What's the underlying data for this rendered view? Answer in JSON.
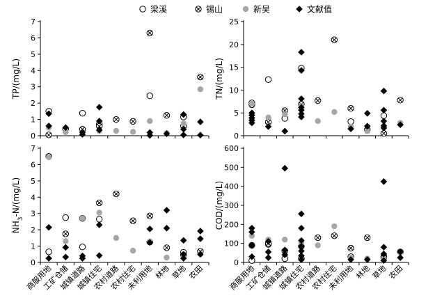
{
  "chart_data": {
    "type": "scatter",
    "categories": [
      "商服用地",
      "工矿仓储",
      "城镇道路",
      "城镇住宅",
      "农村道路",
      "农村住宅",
      "未利用地",
      "林地",
      "草地",
      "农田"
    ],
    "legend": {
      "placement": "top",
      "entries": [
        {
          "key": "liangxi",
          "label": "梁溪",
          "marker": "open-circle"
        },
        {
          "key": "xishan",
          "label": "锡山",
          "marker": "circle-x"
        },
        {
          "key": "xinwu",
          "label": "新吴",
          "marker": "gray-circle"
        },
        {
          "key": "literature",
          "label": "文献值",
          "marker": "diamond"
        }
      ]
    },
    "panels": [
      {
        "id": "tp",
        "ylabel": "TP/(mg/L)",
        "ylim": [
          0,
          7
        ],
        "yticks": [
          0,
          1,
          2,
          3,
          4,
          5,
          6,
          7
        ],
        "series": {
          "liangxi": [
            [
              1.5
            ],
            [],
            [
              1.38
            ],
            [
              0.7
            ],
            [],
            [],
            [
              2.45
            ],
            [],
            [
              1.15
            ],
            []
          ],
          "xishan": [
            [
              0.05
            ],
            [
              0.42
            ],
            [
              0.4
            ],
            [
              0.58
            ],
            [
              1.0
            ],
            [
              0.88
            ],
            [
              6.3
            ],
            [
              1.25
            ],
            [
              0.6
            ],
            [
              3.6
            ]
          ],
          "xinwu": [
            [
              0.5
            ],
            [
              0.22
            ],
            [
              0.18
            ],
            [
              0.3
            ],
            [
              0.3
            ],
            [
              0.24
            ],
            [
              0.9
            ],
            [
              0.17
            ],
            [
              0.75
            ],
            [
              2.85
            ]
          ],
          "literature": [
            [
              1.35,
              0.6
            ],
            [
              0.5
            ],
            [
              0.22,
              0.08
            ],
            [
              1.75,
              0.9,
              0.35
            ],
            [],
            [],
            [
              0.2,
              0.02
            ],
            [
              0.12
            ],
            [
              1.3,
              0.4,
              0.05
            ],
            [
              0.85,
              0.04
            ]
          ]
        }
      },
      {
        "id": "tn",
        "ylabel": "TN/(mg/L)",
        "ylim": [
          0,
          25
        ],
        "yticks": [
          0,
          5,
          10,
          15,
          20,
          25
        ],
        "series": {
          "liangxi": [
            [
              7.2
            ],
            [
              12.3
            ],
            [
              3.8
            ],
            [
              14.8
            ],
            [],
            [],
            [
              3.1
            ],
            [],
            [
              4.4
            ],
            []
          ],
          "xishan": [
            [
              6.8
            ],
            [
              3.0
            ],
            [
              5.5
            ],
            [
              6.9
            ],
            [
              7.7
            ],
            [
              21.0
            ],
            [
              6.0
            ],
            [
              1.3
            ],
            [
              0.5
            ],
            [
              7.8
            ]
          ],
          "xinwu": [
            [
              7.0
            ],
            [
              4.0
            ],
            [
              4.7
            ],
            [
              6.5
            ],
            [
              3.2
            ],
            [
              5.2
            ],
            [
              2.0
            ],
            [
              1.0
            ],
            [
              2.0
            ],
            [
              2.8
            ]
          ],
          "literature": [
            [
              5.0,
              4.5,
              3.9,
              3.4,
              2.8
            ],
            [
              2.0
            ],
            [
              1.0
            ],
            [
              18.3,
              14.3,
              8.1,
              6.2,
              5.6,
              4.8,
              4.1
            ],
            [],
            [],
            [
              1.5
            ],
            [
              4.9,
              2.1
            ],
            [
              9.8,
              5.6,
              3.2,
              2.2,
              1.7
            ],
            [
              2.4
            ]
          ]
        }
      },
      {
        "id": "nh3n",
        "ylabel": "NH3-N/(mg/L)",
        "ylabel_parts": {
          "base": "NH",
          "sub": "3",
          "rest": "-N/(mg/L)"
        },
        "ylim": [
          0,
          7
        ],
        "yticks": [
          0,
          1,
          2,
          3,
          4,
          5,
          6,
          7
        ],
        "series": {
          "liangxi": [
            [
              0.65
            ],
            [
              2.75
            ],
            [
              0.95
            ],
            [
              2.65
            ],
            [],
            [],
            [
              1.25
            ],
            [],
            [
              0.62
            ],
            []
          ],
          "xishan": [
            [
              6.5
            ],
            [
              1.75
            ],
            [
              2.7
            ],
            [
              3.65
            ],
            [
              4.2
            ],
            [
              2.55
            ],
            [
              2.85
            ],
            [
              0.9
            ],
            [
              0.45
            ],
            [
              0.68
            ]
          ],
          "xinwu": [
            [
              6.45
            ],
            [
              1.3
            ],
            [
              2.7
            ],
            [
              3.05
            ],
            [
              1.5
            ],
            [
              0.72
            ],
            [
              1.28
            ],
            [
              0.3
            ],
            [
              0.3
            ],
            [
              0.5
            ]
          ],
          "literature": [
            [
              2.15,
              0.25
            ],
            [
              0.92,
              0.33
            ],
            [
              0.4,
              0.25
            ],
            [
              2.3,
              0.42
            ],
            [],
            [],
            [
              2.05,
              1.22
            ],
            [
              3.2,
              2.1
            ],
            [
              1.35,
              0.5,
              0.25
            ],
            [
              1.92,
              1.45,
              0.5
            ]
          ]
        }
      },
      {
        "id": "cod",
        "ylabel": "COD/(mg/L)",
        "ylim": [
          0,
          600
        ],
        "yticks": [
          0,
          100,
          200,
          300,
          400,
          500,
          600
        ],
        "series": {
          "liangxi": [
            [
              10
            ],
            [
              95
            ],
            [
              20
            ],
            [
              20
            ],
            [],
            [],
            [
              30
            ],
            [],
            [
              30
            ],
            []
          ],
          "xishan": [
            [
              90
            ],
            [
              100
            ],
            [
              60
            ],
            [
              85
            ],
            [
              130
            ],
            [
              140
            ],
            [
              75
            ],
            [
              130
            ],
            [
              25
            ],
            [
              55
            ]
          ],
          "xinwu": [
            [
              140
            ],
            [
              120
            ],
            [
              120
            ],
            [
              100
            ],
            [
              90
            ],
            [
              190
            ],
            [
              25
            ],
            [
              20
            ],
            [
              20
            ],
            [
              50
            ]
          ],
          "literature": [
            [
              180,
              160,
              90,
              30
            ],
            [
              110,
              55,
              25
            ],
            [
              495,
              65,
              40
            ],
            [
              255,
              180,
              115,
              85,
              60,
              35,
              15
            ],
            [],
            [],
            [
              15
            ],
            [
              15
            ],
            [
              425,
              80,
              45,
              10
            ],
            [
              55,
              25
            ]
          ]
        }
      }
    ]
  }
}
